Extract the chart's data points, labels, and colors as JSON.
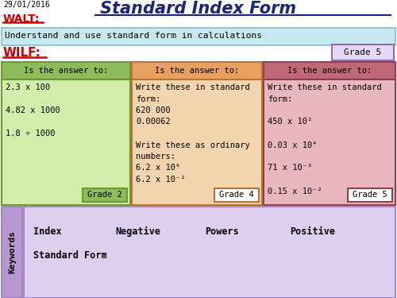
{
  "date": "29/01/2016",
  "title": "Standard Index Form",
  "walt_label": "WALT:",
  "walt_text": "Understand and use standard form in calculations",
  "wilf_label": "WILF:",
  "grade5_box": "Grade 5",
  "col1_header": "Is the answer to:",
  "col2_header": "Is the answer to:",
  "col3_header": "Is the answer to:",
  "col1_lines": [
    "2.3 x 100",
    "",
    "4.82 x 1000",
    "",
    "1.8 ÷ 1000"
  ],
  "col2_lines": [
    "Write these in standard",
    "form:",
    "620 000",
    "0.00062",
    "",
    "Write these as ordinary",
    "numbers:",
    "6.2 x 10⁶",
    "6.2 x 10⁻²"
  ],
  "col3_lines": [
    "Write these in standard",
    "form:",
    "",
    "450 x 10²",
    "",
    "0.03 x 10⁴",
    "",
    "71 x 10⁻³",
    "",
    "0.15 x 10⁻²"
  ],
  "col1_grade": "Grade 2",
  "col2_grade": "Grade 4",
  "col3_grade": "Grade 5",
  "keywords_label": "Keywords",
  "keywords_row1": [
    "Index",
    "Negative",
    "Powers",
    "Positive"
  ],
  "keywords_row2": "Standard Form",
  "bg_color": "#ffffff",
  "walt_bg": "#c8e8f0",
  "grade5_bg": "#e8d8f8",
  "grade5_border": "#9966bb",
  "col1_header_bg": "#8fbc5a",
  "col1_body_bg": "#d4edaa",
  "col1_border": "#6a9a30",
  "col2_header_bg": "#e8a060",
  "col2_body_bg": "#f5d5b0",
  "col2_border": "#c07030",
  "col3_header_bg": "#c06878",
  "col3_body_bg": "#e8b8be",
  "col3_border": "#904050",
  "col1_grade_bg": "#8fbc5a",
  "col2_grade_bg": "#ffffff",
  "col3_grade_bg": "#ffffff",
  "keywords_side_bg": "#b898d0",
  "keywords_body_bg": "#ddd0ee",
  "keywords_border": "#9977bb",
  "title_color": "#1a237e",
  "walt_color": "#cc0000",
  "wilf_color": "#cc0000",
  "date_color": "#000000"
}
